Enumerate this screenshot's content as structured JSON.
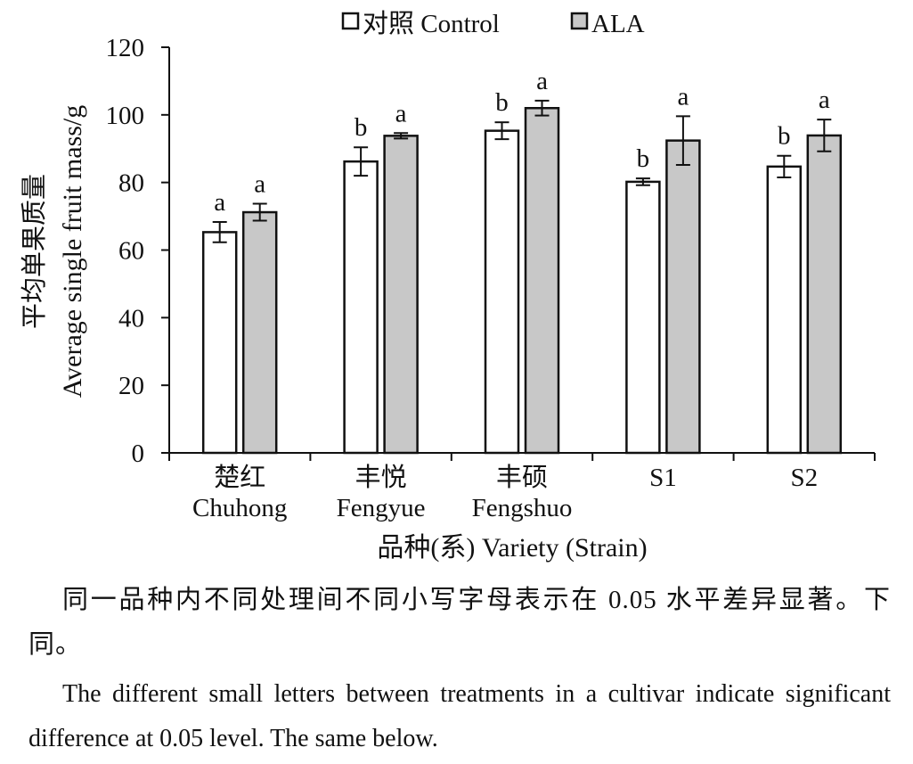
{
  "chart_data": {
    "type": "bar",
    "ylabel_zh": "平均单果质量",
    "ylabel_en": "Average single fruit mass/g",
    "xlabel": "品种(系) Variety (Strain)",
    "ylim": [
      0,
      120
    ],
    "yticks": [
      0,
      20,
      40,
      60,
      80,
      100,
      120
    ],
    "grid": false,
    "legend_position": "top",
    "categories": [
      {
        "zh": "楚红",
        "en": "Chuhong"
      },
      {
        "zh": "丰悦",
        "en": "Fengyue"
      },
      {
        "zh": "丰硕",
        "en": "Fengshuo"
      },
      {
        "zh": "",
        "en": "S1"
      },
      {
        "zh": "",
        "en": "S2"
      }
    ],
    "series": [
      {
        "name": "对照 Control",
        "color": "#ffffff",
        "values": [
          65.3,
          86.2,
          95.3,
          80.2,
          84.7
        ],
        "errors": [
          3.0,
          4.2,
          2.5,
          1.0,
          3.2
        ],
        "letters": [
          "a",
          "b",
          "b",
          "b",
          "b"
        ]
      },
      {
        "name": "ALA",
        "color": "#c8c8c8",
        "values": [
          71.2,
          93.8,
          102.0,
          92.4,
          93.9
        ],
        "errors": [
          2.5,
          0.8,
          2.2,
          7.2,
          4.7
        ],
        "letters": [
          "a",
          "a",
          "a",
          "a",
          "a"
        ]
      }
    ]
  },
  "caption": {
    "zh": "同一品种内不同处理间不同小写字母表示在 0.05 水平差异显著。下同。",
    "en": "The different small letters between treatments in a cultivar indicate significant difference at 0.05 level. The same below."
  }
}
